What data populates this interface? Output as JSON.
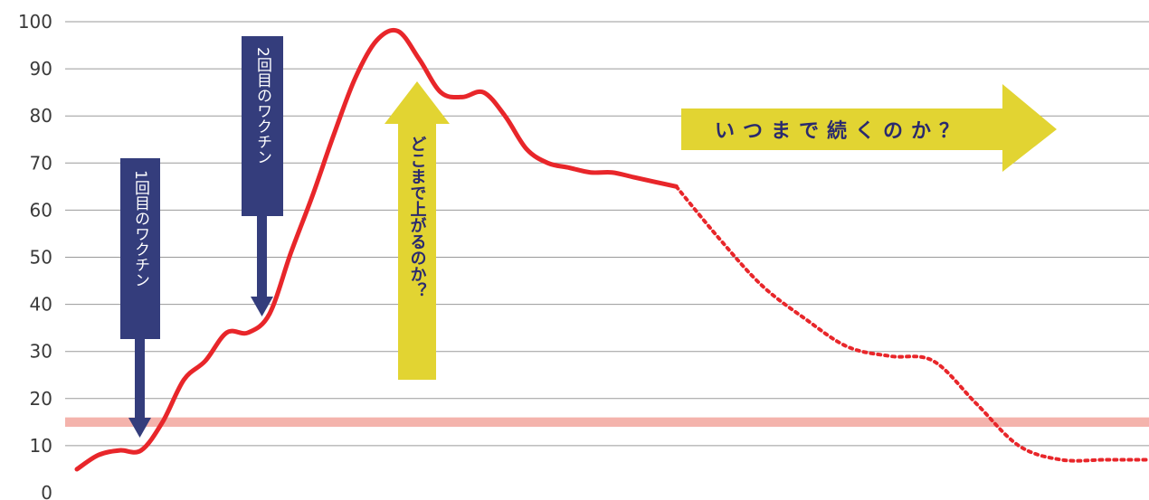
{
  "chart_data": {
    "type": "line",
    "title": "",
    "xlabel": "",
    "ylabel": "",
    "ylim": [
      0,
      100
    ],
    "yticks": [
      0,
      10,
      20,
      30,
      40,
      50,
      60,
      70,
      80,
      90,
      100
    ],
    "grid": true,
    "colors": {
      "line": "#e8262a",
      "threshold_band": "#f4b3ac",
      "grid": "#9a9a9a",
      "navy": "#343d7c",
      "yellow": "#e2d432",
      "yellow_text": "#2a2a6e"
    },
    "threshold_band": [
      14,
      16
    ],
    "series": [
      {
        "style": "solid",
        "x": [
          0,
          2,
          4,
          6,
          8,
          10,
          12,
          14,
          16,
          18,
          20,
          22,
          24,
          26,
          28,
          30,
          32,
          34,
          36,
          38,
          40,
          42,
          44,
          46,
          48,
          50,
          52,
          54,
          56
        ],
        "y": [
          5,
          8,
          9,
          9,
          15,
          24,
          28,
          34,
          34,
          38,
          51,
          63,
          76,
          88,
          96,
          98,
          92,
          85,
          84,
          85,
          80,
          73,
          70,
          69,
          68,
          68,
          67,
          66,
          65
        ]
      },
      {
        "style": "dotted",
        "x": [
          56,
          60,
          64,
          68,
          72,
          76,
          80,
          84,
          88,
          92,
          96,
          100
        ],
        "y": [
          65,
          54,
          44,
          37,
          31,
          29,
          28,
          19,
          10,
          7,
          7,
          7
        ]
      }
    ],
    "annotations": {
      "first_dose": "1回目のワクチン",
      "second_dose": "2回目のワクチン",
      "how_high": "どこまで上がるのか？",
      "how_long": "いつまで続くのか？"
    }
  }
}
